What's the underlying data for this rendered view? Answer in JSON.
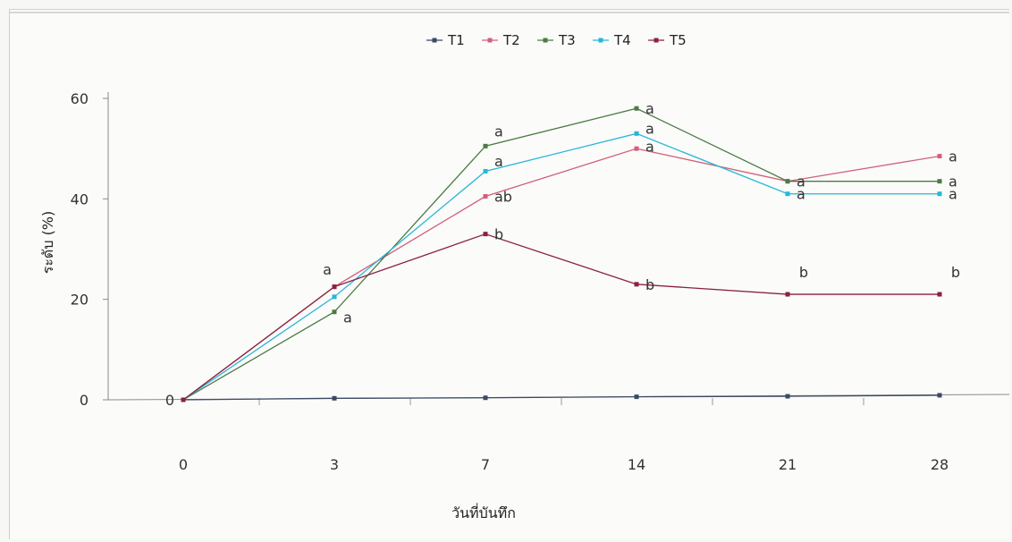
{
  "chart_data": {
    "type": "line",
    "title": "",
    "xlabel": "วันที่บันทึก",
    "ylabel": "ระดับ (%)",
    "x": [
      "0",
      "3",
      "7",
      "14",
      "21",
      "28"
    ],
    "ylim": [
      0,
      60
    ],
    "yticks": [
      "0",
      "20",
      "40",
      "60"
    ],
    "grid": false,
    "legend_position": "top",
    "series": [
      {
        "name": "T1",
        "color": "#3a4a63",
        "values": [
          0,
          0.3,
          0.4,
          0.6,
          0.7,
          0.9
        ]
      },
      {
        "name": "T2",
        "color": "#d2607a",
        "values": [
          0,
          22.5,
          40.5,
          50.0,
          43.5,
          48.5
        ]
      },
      {
        "name": "T3",
        "color": "#4c7a44",
        "values": [
          0,
          17.5,
          50.5,
          58.0,
          43.5,
          43.5
        ]
      },
      {
        "name": "T4",
        "color": "#27b6d8",
        "values": [
          0,
          20.5,
          45.5,
          53.0,
          41.0,
          41.0
        ]
      },
      {
        "name": "T5",
        "color": "#8a2140",
        "values": [
          0,
          22.5,
          33.0,
          23.0,
          21.0,
          21.0
        ]
      }
    ],
    "annotations": [
      {
        "x": "0",
        "y": 0,
        "text": "0"
      },
      {
        "x": "3",
        "y": 26.0,
        "text": "a"
      },
      {
        "x": "3",
        "y": 16.5,
        "text": "a"
      },
      {
        "x": "7",
        "y": 53.5,
        "text": "a"
      },
      {
        "x": "7",
        "y": 47.5,
        "text": "a"
      },
      {
        "x": "7",
        "y": 40.5,
        "text": "ab"
      },
      {
        "x": "7",
        "y": 33.0,
        "text": "b"
      },
      {
        "x": "14",
        "y": 58.0,
        "text": "a"
      },
      {
        "x": "14",
        "y": 54.0,
        "text": "a"
      },
      {
        "x": "14",
        "y": 50.5,
        "text": "a"
      },
      {
        "x": "14",
        "y": 23.0,
        "text": "b"
      },
      {
        "x": "21",
        "y": 43.5,
        "text": "a"
      },
      {
        "x": "21",
        "y": 41.0,
        "text": "a"
      },
      {
        "x": "21",
        "y": 25.5,
        "text": "b"
      },
      {
        "x": "28",
        "y": 48.5,
        "text": "a"
      },
      {
        "x": "28",
        "y": 43.5,
        "text": "a"
      },
      {
        "x": "28",
        "y": 41.0,
        "text": "a"
      },
      {
        "x": "28",
        "y": 25.5,
        "text": "b"
      }
    ]
  }
}
